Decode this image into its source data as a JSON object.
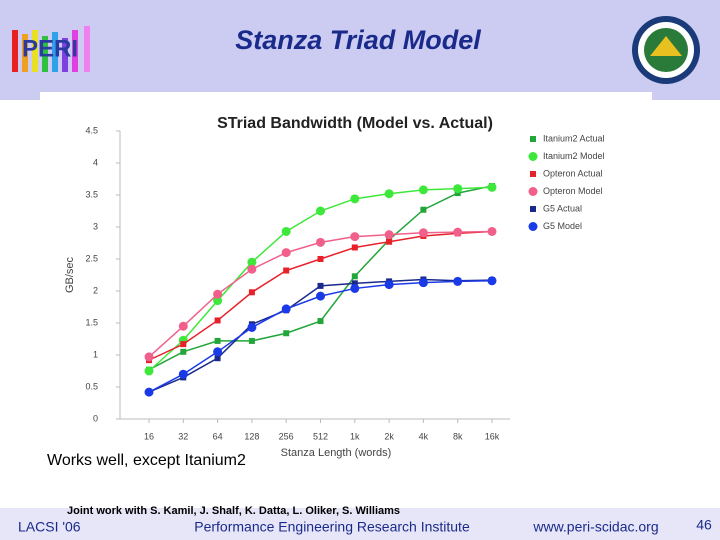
{
  "header": {
    "logo": "PERI",
    "title": "Stanza Triad Model"
  },
  "caption": "Works well, except Itanium2",
  "credit": "Joint work with S. Kamil, J. Shalf, K. Datta, L. Oliker, S. Williams",
  "footer": {
    "left": "LACSI '06",
    "center": "Performance Engineering Research Institute",
    "right": "www.peri-scidac.org",
    "page": "46"
  },
  "chart_data": {
    "type": "line",
    "title": "STriad Bandwidth (Model vs. Actual)",
    "x_label": "Stanza Length (words)",
    "y_label": "GB/sec",
    "categories": [
      "16",
      "32",
      "64",
      "128",
      "256",
      "512",
      "1k",
      "2k",
      "4k",
      "8k",
      "16k"
    ],
    "ylim": [
      0,
      4.5
    ],
    "yticks": [
      0,
      0.5,
      1,
      1.5,
      2,
      2.5,
      3,
      3.5,
      4,
      4.5
    ],
    "legend": "upper right",
    "series": [
      {
        "name": "Itanium2 Actual",
        "color": "#22a63a",
        "marker": "square",
        "values": [
          0.77,
          1.05,
          1.22,
          1.22,
          1.34,
          1.53,
          2.23,
          2.8,
          3.27,
          3.53,
          3.64
        ]
      },
      {
        "name": "Itanium2 Model",
        "color": "#3ee83a",
        "marker": "circle",
        "values": [
          0.75,
          1.23,
          1.85,
          2.45,
          2.93,
          3.25,
          3.44,
          3.52,
          3.58,
          3.6,
          3.62
        ]
      },
      {
        "name": "Opteron Actual",
        "color": "#e8202a",
        "marker": "square",
        "values": [
          0.92,
          1.17,
          1.54,
          1.98,
          2.32,
          2.5,
          2.68,
          2.77,
          2.86,
          2.9,
          2.93
        ]
      },
      {
        "name": "Opteron Model",
        "color": "#f0608a",
        "marker": "circle",
        "values": [
          0.97,
          1.45,
          1.95,
          2.34,
          2.6,
          2.76,
          2.85,
          2.88,
          2.91,
          2.92,
          2.93
        ]
      },
      {
        "name": "G5 Actual",
        "color": "#1a2a8a",
        "marker": "square",
        "values": [
          0.42,
          0.65,
          0.95,
          1.48,
          1.7,
          2.08,
          2.12,
          2.15,
          2.18,
          2.16,
          2.17
        ]
      },
      {
        "name": "G5 Model",
        "color": "#1a3ae8",
        "marker": "circle",
        "values": [
          0.42,
          0.7,
          1.05,
          1.43,
          1.72,
          1.92,
          2.04,
          2.1,
          2.13,
          2.15,
          2.16
        ]
      }
    ]
  }
}
